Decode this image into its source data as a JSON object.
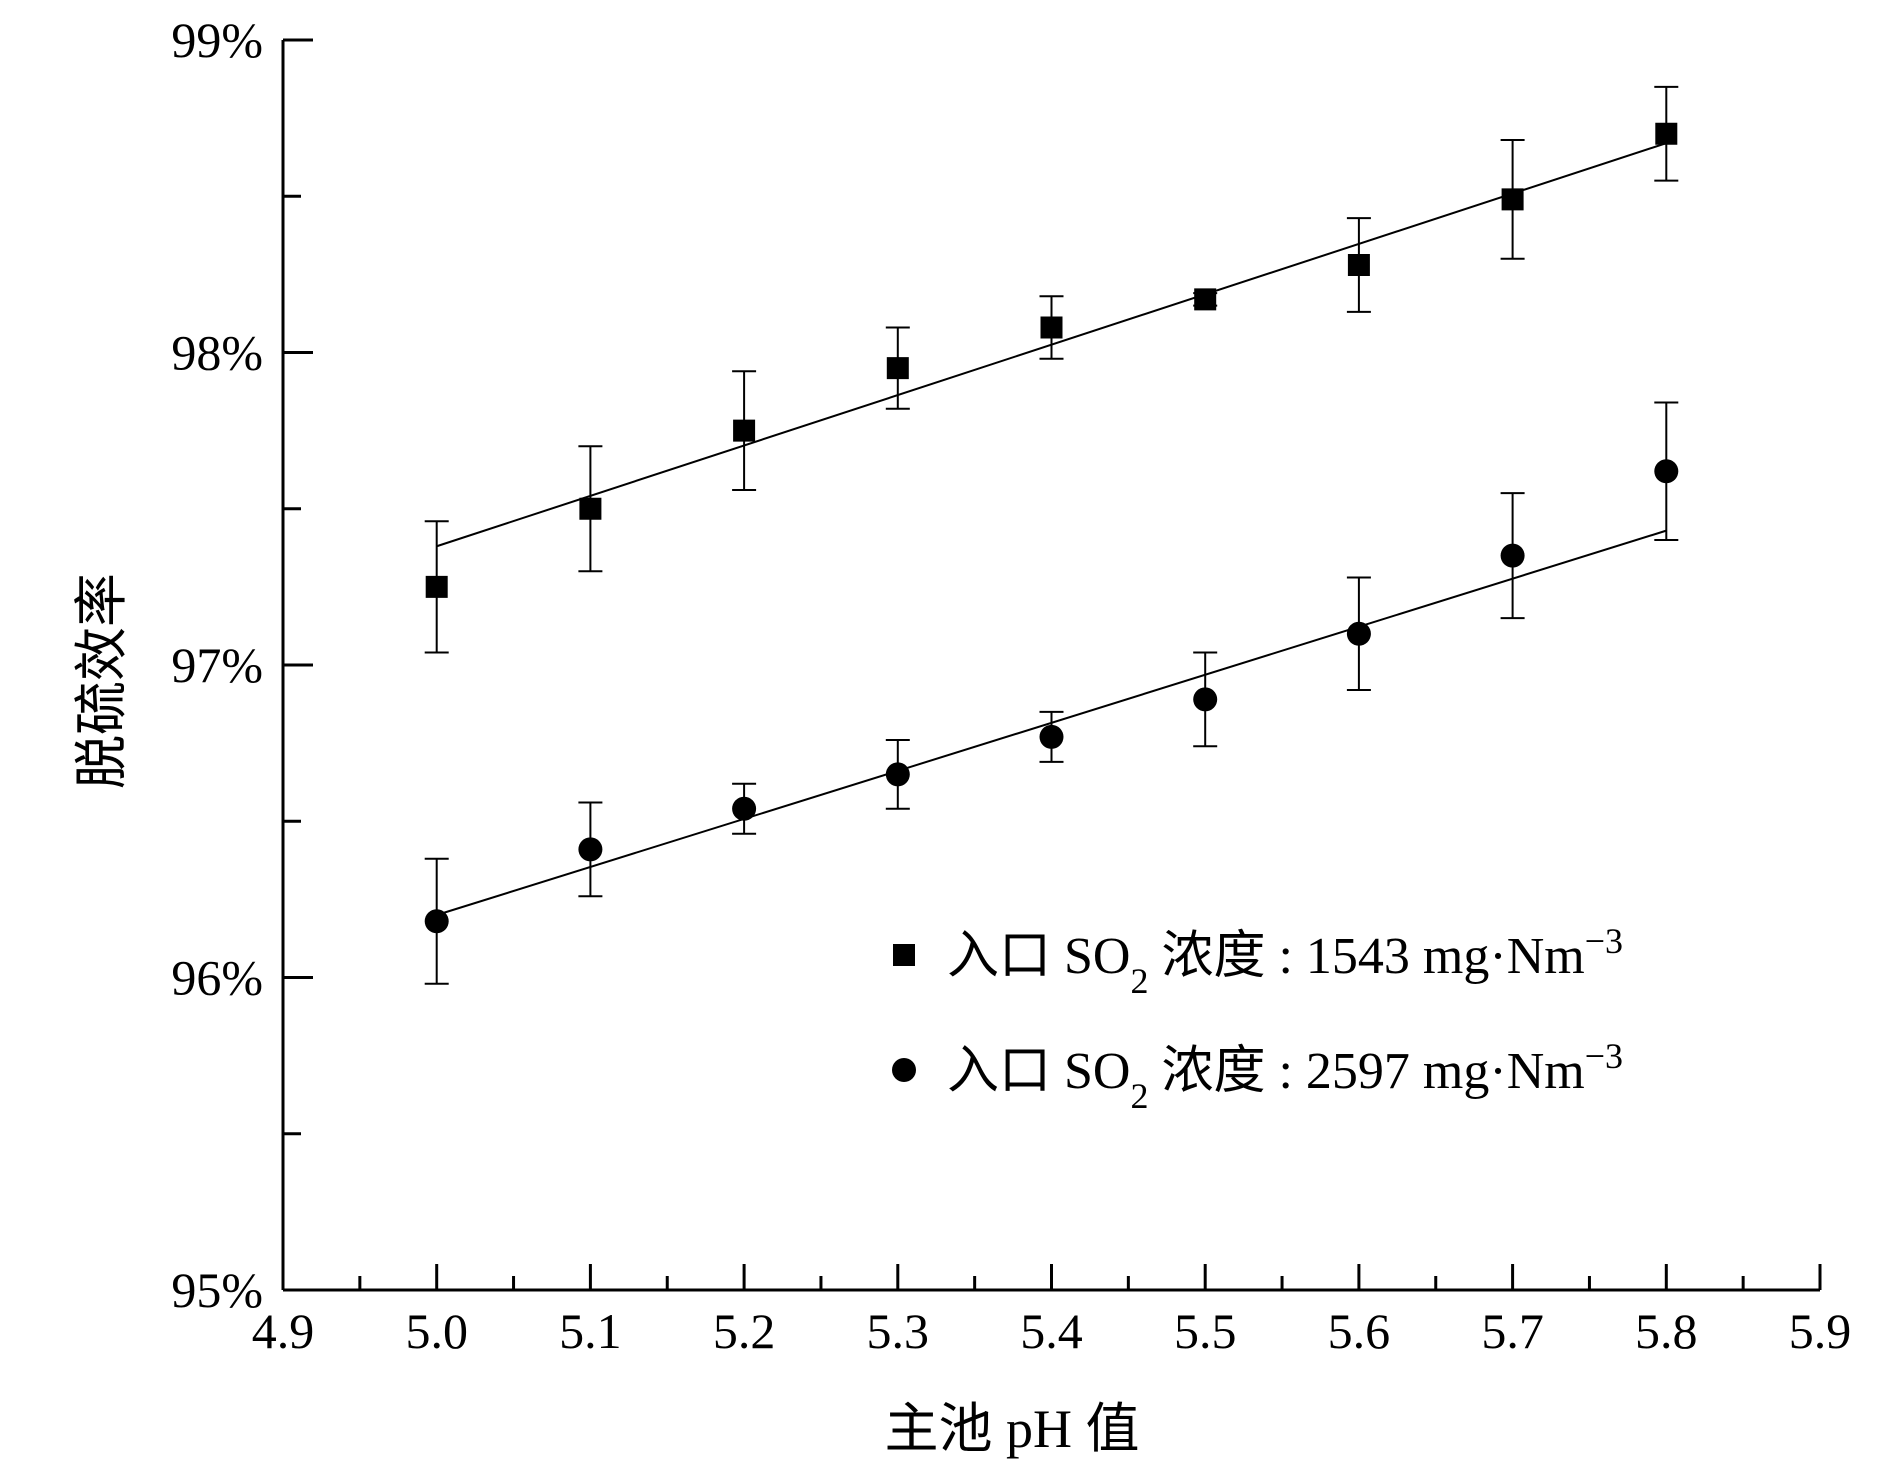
{
  "chart_data": {
    "type": "scatter",
    "xlabel": "主池 pH 值",
    "ylabel": "脱硫效率",
    "xlim": [
      4.9,
      5.9
    ],
    "ylim": [
      0.95,
      0.99
    ],
    "x_ticks": [
      "4.9",
      "5.0",
      "5.1",
      "5.2",
      "5.3",
      "5.4",
      "5.5",
      "5.6",
      "5.7",
      "5.8",
      "5.9"
    ],
    "y_ticks": [
      "95%",
      "96%",
      "97%",
      "98%",
      "99%"
    ],
    "grid": false,
    "legend_position": "bottom-right",
    "series": [
      {
        "legend_prefix": "入口 SO",
        "legend_sub": "2",
        "legend_mid": " 浓度 : 1543 mg·Nm",
        "legend_sup": "−3",
        "marker": "square",
        "x": [
          5.0,
          5.1,
          5.2,
          5.3,
          5.4,
          5.5,
          5.6,
          5.7,
          5.8
        ],
        "y": [
          0.9725,
          0.975,
          0.9775,
          0.9795,
          0.9808,
          0.9817,
          0.9828,
          0.9849,
          0.987
        ],
        "err": [
          0.0021,
          0.002,
          0.0019,
          0.0013,
          0.001,
          0.0002,
          0.0015,
          0.0019,
          0.0015
        ],
        "fit": {
          "x": [
            5.0,
            5.8
          ],
          "y": [
            0.9738,
            0.9867
          ]
        }
      },
      {
        "legend_prefix": "入口 SO",
        "legend_sub": "2",
        "legend_mid": " 浓度 : 2597 mg·Nm",
        "legend_sup": "−3",
        "marker": "circle",
        "x": [
          5.0,
          5.1,
          5.2,
          5.3,
          5.4,
          5.5,
          5.6,
          5.7,
          5.8
        ],
        "y": [
          0.9618,
          0.9641,
          0.9654,
          0.9665,
          0.9677,
          0.9689,
          0.971,
          0.9735,
          0.9762
        ],
        "err": [
          0.002,
          0.0015,
          0.0008,
          0.0011,
          0.0008,
          0.0015,
          0.0018,
          0.002,
          0.0022
        ],
        "fit": {
          "x": [
            5.0,
            5.8
          ],
          "y": [
            0.962,
            0.9743
          ]
        }
      }
    ]
  }
}
